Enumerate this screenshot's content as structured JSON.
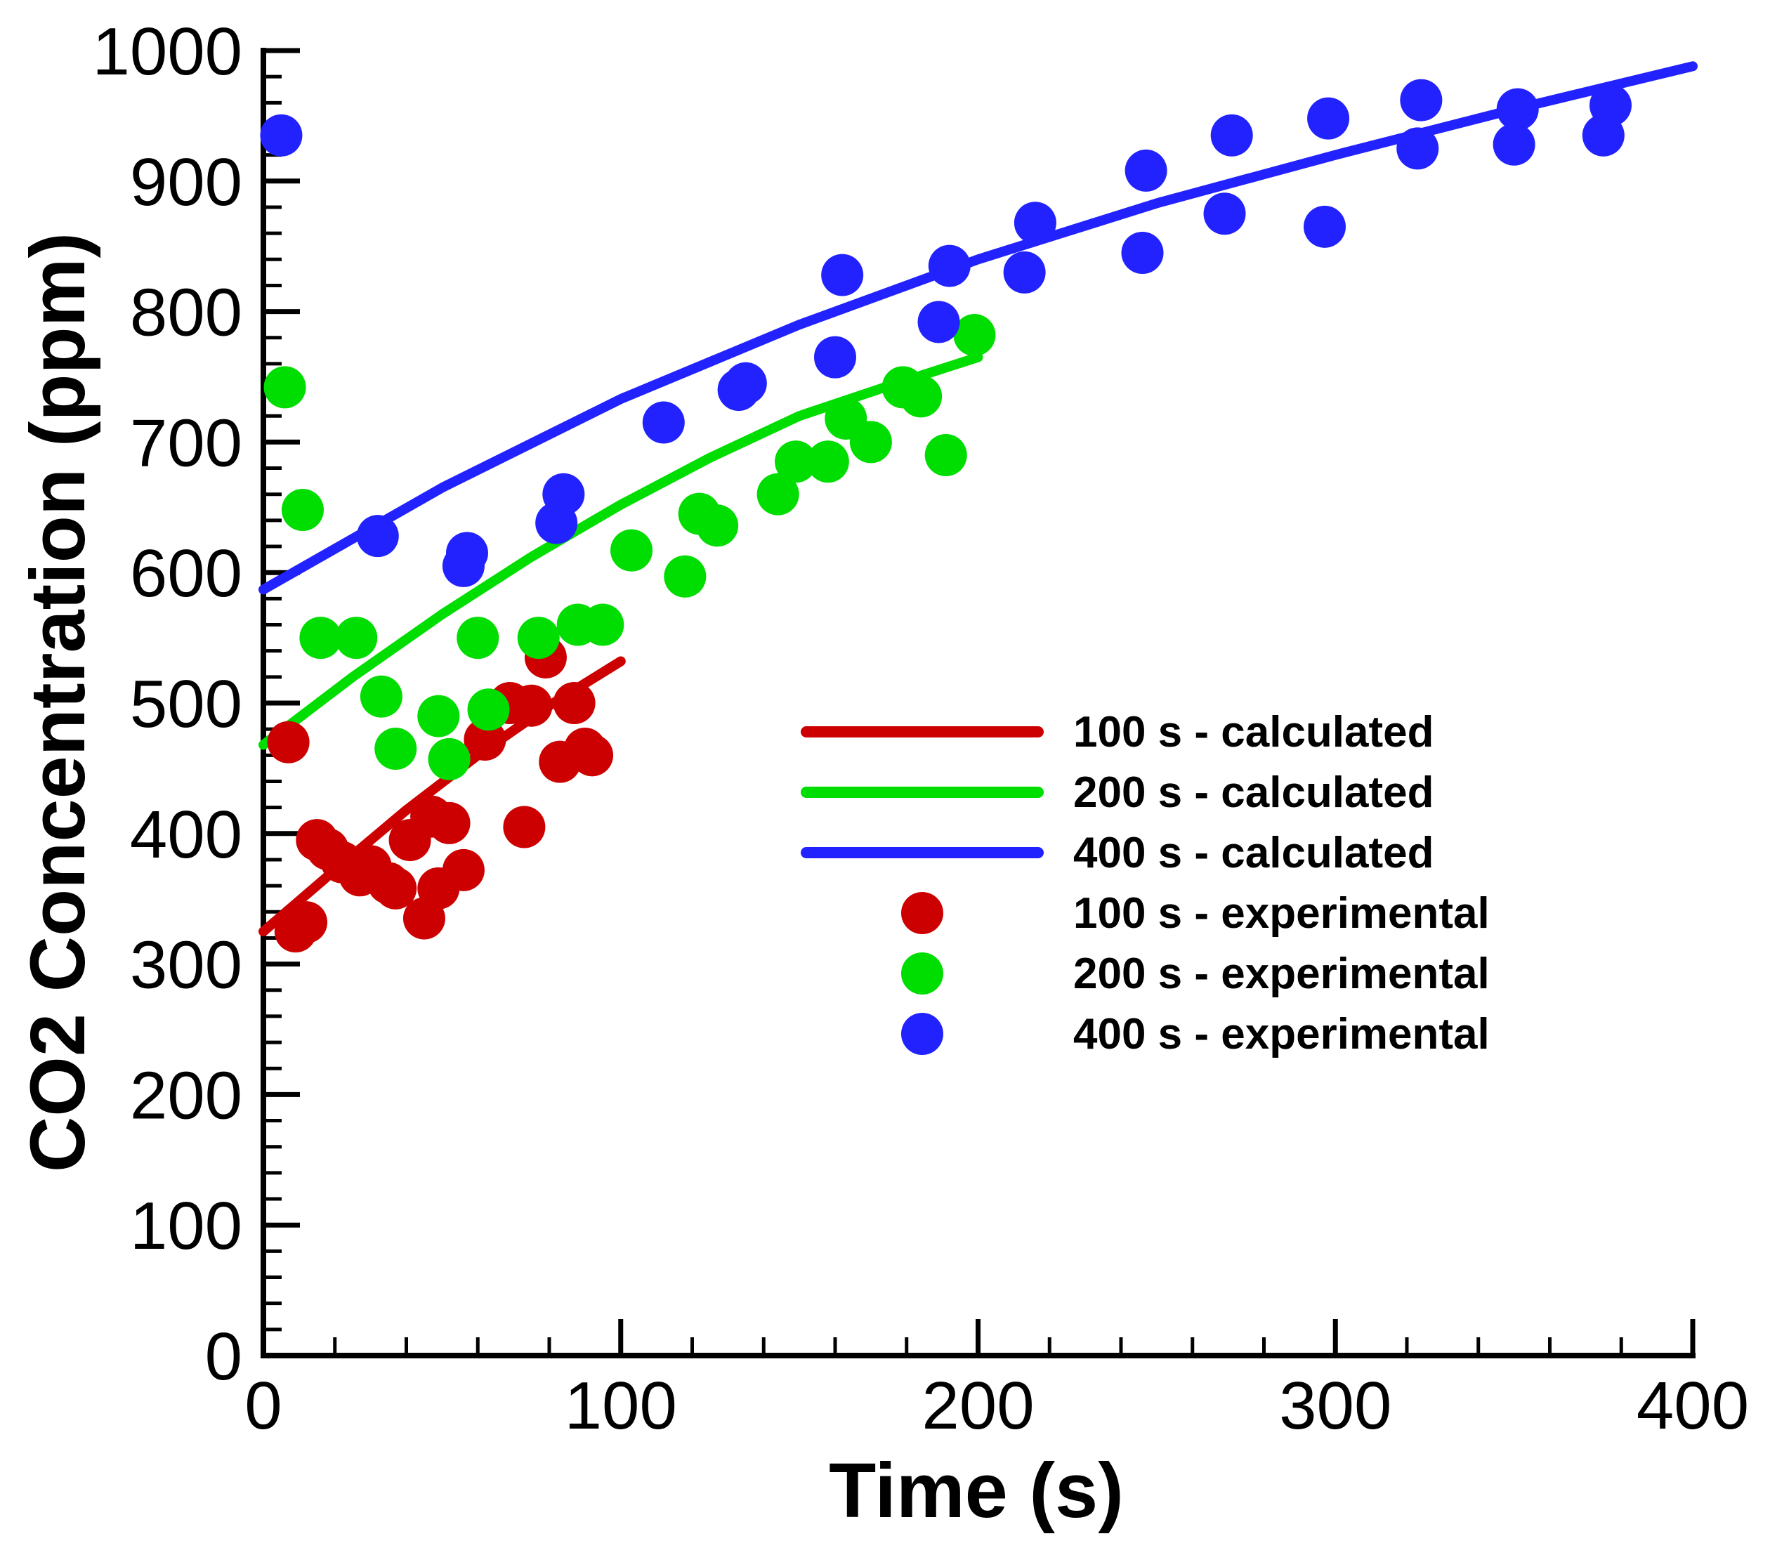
{
  "chart_data": {
    "type": "scatter",
    "xlabel": "Time (s)",
    "ylabel": "CO2 Concentration (ppm)",
    "xlim": [
      0,
      400
    ],
    "ylim": [
      0,
      1000
    ],
    "xticks": [
      0,
      100,
      200,
      300,
      400
    ],
    "yticks": [
      0,
      100,
      200,
      300,
      400,
      500,
      600,
      700,
      800,
      900,
      1000
    ],
    "grid": false,
    "legend_position": "right-middle",
    "lines": [
      {
        "name": "100 s - calculated",
        "color": "#cc0000",
        "x": [
          0,
          20,
          40,
          60,
          80,
          100
        ],
        "y": [
          325,
          372,
          418,
          460,
          498,
          532
        ]
      },
      {
        "name": "200 s - calculated",
        "color": "#00dd00",
        "x": [
          0,
          25,
          50,
          75,
          100,
          125,
          150,
          175,
          200
        ],
        "y": [
          468,
          520,
          568,
          612,
          652,
          688,
          720,
          743,
          765
        ]
      },
      {
        "name": "400 s - calculated",
        "color": "#2222ff",
        "x": [
          0,
          50,
          100,
          150,
          200,
          250,
          300,
          350,
          400
        ],
        "y": [
          587,
          665,
          733,
          790,
          840,
          883,
          920,
          955,
          988
        ]
      }
    ],
    "scatter": [
      {
        "name": "100 s - experimental",
        "color": "#cc0000",
        "x": [
          7,
          9,
          12,
          15,
          18,
          22,
          27,
          30,
          35,
          37,
          41,
          45,
          47,
          49,
          52,
          56,
          62,
          69,
          73,
          75,
          79,
          83,
          87,
          90,
          92
        ],
        "y": [
          470,
          325,
          332,
          395,
          388,
          378,
          368,
          375,
          362,
          358,
          395,
          335,
          413,
          358,
          408,
          372,
          472,
          500,
          405,
          498,
          535,
          455,
          500,
          465,
          460
        ]
      },
      {
        "name": "200 s - experimental",
        "color": "#00dd00",
        "x": [
          6,
          11,
          16,
          26,
          33,
          37,
          49,
          52,
          60,
          63,
          77,
          88,
          95,
          103,
          118,
          122,
          127,
          144,
          149,
          158,
          163,
          170,
          179,
          184,
          191,
          199
        ],
        "y": [
          742,
          648,
          550,
          550,
          505,
          465,
          490,
          457,
          550,
          495,
          550,
          560,
          560,
          617,
          597,
          645,
          636,
          660,
          685,
          685,
          718,
          700,
          742,
          735,
          690,
          782
        ]
      },
      {
        "name": "400 s - experimental",
        "color": "#2222ff",
        "x": [
          5,
          32,
          56,
          57,
          82,
          84,
          112,
          133,
          135,
          160,
          162,
          189,
          192,
          213,
          216,
          246,
          247,
          269,
          271,
          297,
          298,
          323,
          324,
          350,
          351,
          375,
          377
        ],
        "y": [
          935,
          628,
          605,
          615,
          638,
          660,
          715,
          740,
          745,
          765,
          828,
          792,
          835,
          830,
          868,
          845,
          908,
          875,
          935,
          865,
          948,
          925,
          962,
          928,
          955,
          935,
          958
        ]
      }
    ]
  }
}
